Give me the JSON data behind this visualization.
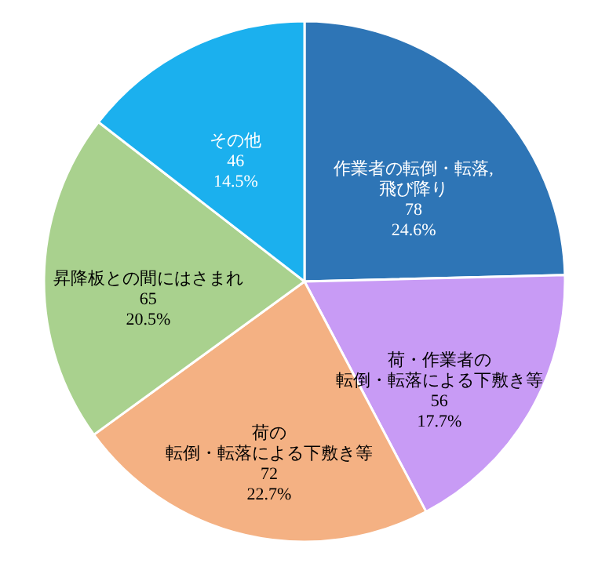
{
  "chart_data": {
    "type": "pie",
    "categories": [
      "作業者の転倒・転落,\n飛び降り",
      "荷・作業者の転倒・転落による下敷き等",
      "荷の転倒・転落による下敷き等",
      "昇降板との間にはさまれ",
      "その他"
    ],
    "values": [
      78,
      56,
      72,
      65,
      46
    ],
    "value_labels": [
      "78\n24.6%",
      "56\n17.7%",
      "72\n22.7%",
      "65\n20.5%",
      "46\n14.5%"
    ],
    "colors": [
      "#2e75b6",
      "#c89bf5",
      "#f4b183",
      "#a9d18e",
      "#1bb0ee"
    ]
  }
}
